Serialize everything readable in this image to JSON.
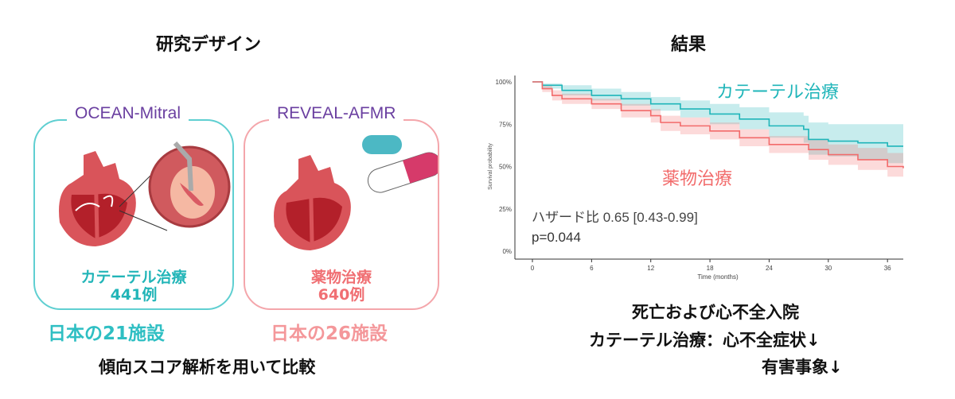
{
  "left": {
    "title": "研究デザイン",
    "boxes": [
      {
        "registry": "OCEAN-Mitral",
        "group": "カテーテル治療",
        "count": "441例",
        "sites": "日本の21施設",
        "color": "#2fbfc3"
      },
      {
        "registry": "REVEAL-AFMR",
        "group": "薬物治療",
        "count": "640例",
        "sites": "日本の26施設",
        "color": "#f07a7a"
      }
    ],
    "footer": "傾向スコア解析を用いて比較"
  },
  "right": {
    "title": "結果",
    "endpoint": "死亡および心不全入院",
    "finding1": "カテーテル治療：心不全症状↓",
    "finding2": "有害事象↓"
  },
  "chart_data": {
    "type": "line",
    "subtype": "kaplan-meier",
    "xlabel": "Time (months)",
    "ylabel": "Survival probability",
    "xticks": [
      0,
      6,
      12,
      18,
      24,
      30,
      36
    ],
    "yticks": [
      "0%",
      "25%",
      "50%",
      "75%",
      "100%"
    ],
    "xlim": [
      0,
      37.6
    ],
    "ylim": [
      0,
      1
    ],
    "grid": false,
    "annotation_hr": "ハザード比 0.65 [0.43-0.99]",
    "annotation_p": "p=0.044",
    "series": [
      {
        "name": "カテーテル治療",
        "color": "#1fb5b9",
        "x": [
          0,
          1,
          3,
          6,
          9,
          12,
          15,
          18,
          21,
          24,
          27.5,
          28,
          30,
          33,
          36,
          37.6
        ],
        "y": [
          1.0,
          0.98,
          0.95,
          0.92,
          0.9,
          0.87,
          0.84,
          0.81,
          0.78,
          0.74,
          0.72,
          0.66,
          0.65,
          0.64,
          0.62,
          0.62
        ],
        "lower": [
          1.0,
          0.96,
          0.92,
          0.89,
          0.86,
          0.83,
          0.79,
          0.75,
          0.72,
          0.67,
          0.64,
          0.57,
          0.56,
          0.54,
          0.52,
          0.52
        ],
        "upper": [
          1.0,
          0.99,
          0.98,
          0.96,
          0.94,
          0.91,
          0.89,
          0.87,
          0.85,
          0.82,
          0.8,
          0.76,
          0.75,
          0.75,
          0.75,
          0.75
        ]
      },
      {
        "name": "薬物治療",
        "color": "#f26b6b",
        "x": [
          0,
          1,
          2,
          3,
          6,
          9,
          12,
          13,
          15,
          18,
          21,
          24,
          28,
          30,
          33,
          36,
          37.6
        ],
        "y": [
          1.0,
          0.96,
          0.92,
          0.9,
          0.87,
          0.83,
          0.8,
          0.76,
          0.74,
          0.71,
          0.67,
          0.63,
          0.6,
          0.57,
          0.54,
          0.5,
          0.49
        ],
        "lower": [
          1.0,
          0.94,
          0.89,
          0.87,
          0.84,
          0.79,
          0.76,
          0.71,
          0.69,
          0.66,
          0.62,
          0.58,
          0.54,
          0.51,
          0.48,
          0.44,
          0.42
        ],
        "upper": [
          1.0,
          0.98,
          0.95,
          0.93,
          0.9,
          0.87,
          0.84,
          0.8,
          0.79,
          0.76,
          0.72,
          0.68,
          0.66,
          0.63,
          0.61,
          0.58,
          0.57
        ]
      }
    ]
  }
}
